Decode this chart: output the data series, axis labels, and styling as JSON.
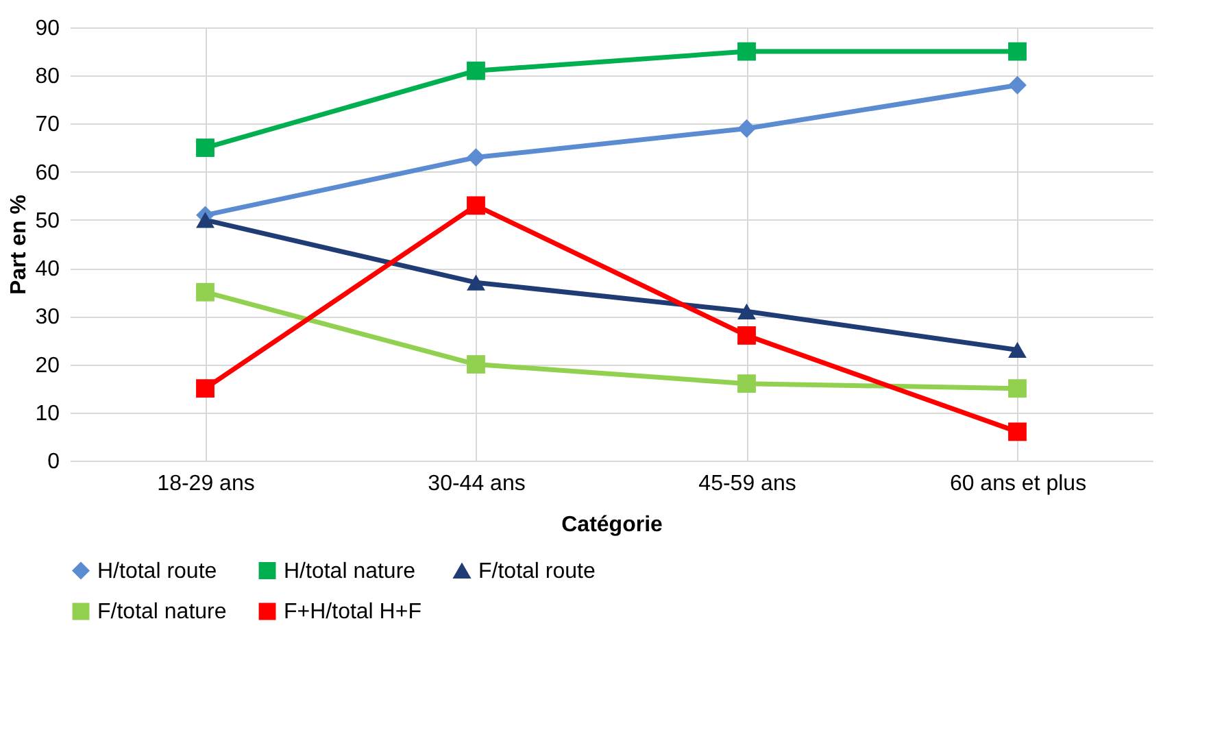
{
  "chart_data": {
    "type": "line",
    "xlabel": "Catégorie",
    "ylabel": "Part en %",
    "categories": [
      "18-29 ans",
      "30-44 ans",
      "45-59 ans",
      "60 ans et plus"
    ],
    "ylim": [
      0,
      90
    ],
    "yticks": [
      0,
      10,
      20,
      30,
      40,
      50,
      60,
      70,
      80,
      90
    ],
    "grid": true,
    "legend": "bottom",
    "line_style": "solid",
    "series": [
      {
        "name": "H/total route",
        "color": "#5b8bd0",
        "marker": "diamond",
        "values": [
          51,
          63,
          69,
          78
        ]
      },
      {
        "name": "H/total nature",
        "color": "#00b050",
        "marker": "square",
        "values": [
          65,
          81,
          85,
          85
        ]
      },
      {
        "name": "F/total route",
        "color": "#1f3c74",
        "marker": "triangle",
        "values": [
          50,
          37,
          31,
          23
        ]
      },
      {
        "name": "F/total nature",
        "color": "#92d050",
        "marker": "square",
        "values": [
          35,
          20,
          16,
          15
        ]
      },
      {
        "name": "F+H/total H+F",
        "color": "#ff0000",
        "marker": "square",
        "values": [
          15,
          53,
          26,
          6
        ]
      }
    ]
  }
}
